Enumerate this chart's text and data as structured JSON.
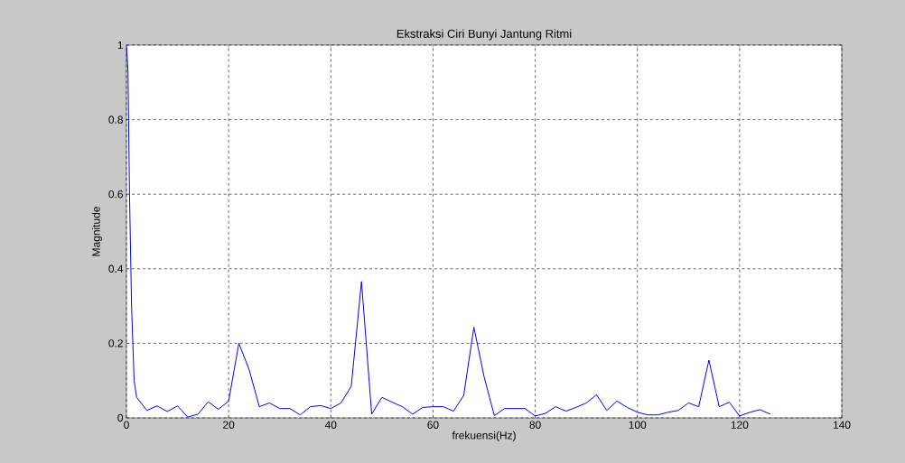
{
  "chart_data": {
    "type": "line",
    "title": "Ekstraksi Ciri Bunyi Jantung Ritmi",
    "xlabel": "frekuensi(Hz)",
    "ylabel": "Magnitude",
    "x": [
      0,
      0.3,
      0.6,
      1,
      1.5,
      2,
      4,
      6,
      8,
      10,
      12,
      14,
      16,
      18,
      20,
      22,
      24,
      26,
      28,
      30,
      32,
      34,
      36,
      38,
      40,
      42,
      44,
      46,
      48,
      50,
      52,
      54,
      56,
      58,
      60,
      62,
      64,
      66,
      68,
      70,
      72,
      74,
      76,
      78,
      80,
      82,
      84,
      86,
      88,
      90,
      92,
      94,
      96,
      98,
      100,
      102,
      104,
      106,
      108,
      110,
      112,
      114,
      116,
      118,
      120,
      122,
      124,
      126
    ],
    "series": [
      {
        "color": "#0000ff",
        "values": [
          1.0,
          0.93,
          0.6,
          0.3,
          0.1,
          0.055,
          0.02,
          0.032,
          0.017,
          0.032,
          0.002,
          0.01,
          0.043,
          0.023,
          0.045,
          0.2,
          0.13,
          0.03,
          0.04,
          0.025,
          0.025,
          0.008,
          0.03,
          0.033,
          0.025,
          0.04,
          0.085,
          0.366,
          0.01,
          0.055,
          0.042,
          0.03,
          0.01,
          0.028,
          0.03,
          0.03,
          0.018,
          0.06,
          0.243,
          0.11,
          0.006,
          0.025,
          0.025,
          0.025,
          0.005,
          0.012,
          0.03,
          0.018,
          0.028,
          0.04,
          0.062,
          0.02,
          0.045,
          0.028,
          0.015,
          0.008,
          0.008,
          0.015,
          0.02,
          0.04,
          0.03,
          0.155,
          0.03,
          0.042,
          0.005,
          0.015,
          0.022,
          0.01
        ]
      }
    ],
    "xlim": [
      0,
      140
    ],
    "ylim": [
      0,
      1
    ],
    "xticks": [
      0,
      20,
      40,
      60,
      80,
      100,
      120,
      140
    ],
    "yticks": [
      0,
      0.2,
      0.4,
      0.6,
      0.8,
      1
    ],
    "grid": true,
    "line_style": "solid",
    "marker": "none"
  }
}
